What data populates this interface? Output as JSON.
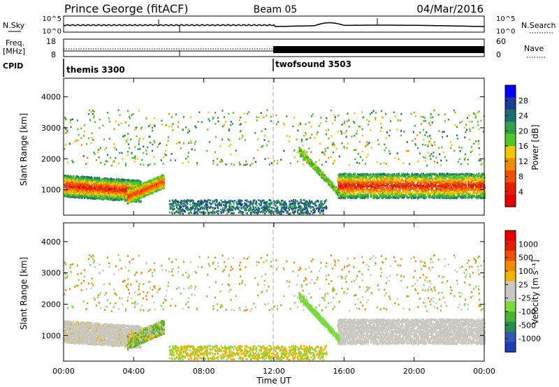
{
  "header": {
    "station": "Prince George (fitACF)",
    "beam": "Beam 05",
    "date": "04/Mar/2016"
  },
  "top_panels": {
    "nsky_label": "N.Sky",
    "nsky_ticks": [
      "10^5",
      "10^0"
    ],
    "nsearch_label": "N.Search",
    "nsearch_ticks": [
      "10^5",
      "10^0"
    ],
    "freq_label_1": "Freq.",
    "freq_label_2": "[MHz]",
    "freq_ticks": [
      "18",
      "8"
    ],
    "nave_label": "Nave",
    "nave_ticks": [
      "60",
      "0"
    ],
    "cpid_label": "CPID",
    "cpid_segments": [
      {
        "name": "themis 3300",
        "start_hour": 0
      },
      {
        "name": "twofsound 3503",
        "start_hour": 12
      }
    ]
  },
  "x_axis": {
    "label": "Time UT",
    "ticks": [
      "00:00",
      "04:00",
      "08:00",
      "12:00",
      "16:00",
      "20:00",
      "00:00"
    ],
    "range_hours": [
      0,
      24
    ],
    "marker_hour": 12
  },
  "chart_data": [
    {
      "type": "heatmap",
      "panel": "power",
      "ylabel": "Slant Range [km]",
      "yticks": [
        "4000",
        "3000",
        "2000",
        "1000"
      ],
      "ylim": [
        180,
        4600
      ],
      "colorbar_label": "Power [dB]",
      "colorbar_ticks": [
        "28",
        "24",
        "20",
        "16",
        "12",
        "8",
        "4"
      ],
      "colorbar_colors": [
        "#0000ff",
        "#1e3c96",
        "#1e6e6e",
        "#32a046",
        "#50c828",
        "#f0c800",
        "#f08c00",
        "#f05000",
        "#e61e00",
        "#e60000"
      ],
      "regions": [
        {
          "label": "evening band",
          "hours": [
            0,
            4.4
          ],
          "range_km": [
            800,
            1600
          ]
        },
        {
          "label": "sloped band",
          "hours": [
            3.6,
            5.7
          ],
          "range_km": [
            650,
            1500
          ]
        },
        {
          "label": "morning band",
          "hours": [
            15.6,
            24
          ],
          "range_km": [
            850,
            1700
          ]
        },
        {
          "label": "rising trace",
          "hours": [
            13.4,
            15.8
          ],
          "range_km": [
            800,
            2300
          ]
        }
      ]
    },
    {
      "type": "heatmap",
      "panel": "velocity",
      "ylabel": "Slant Range [km]",
      "yticks": [
        "4000",
        "3000",
        "2000",
        "1000"
      ],
      "ylim": [
        180,
        4600
      ],
      "colorbar_label": "Velocity [m s⁻¹]",
      "colorbar_ticks": [
        "1000",
        "500",
        "100",
        "25",
        "-25",
        "-100",
        "-500",
        "-1000"
      ],
      "colorbar_colors": [
        "#1e3cb4",
        "#325ab4",
        "#288c50",
        "#46b432",
        "#78dc3c",
        "#c8c8c0",
        "#c8c8c0",
        "#f0b400",
        "#f08c00",
        "#f05000",
        "#e61e00",
        "#e60000"
      ]
    }
  ]
}
